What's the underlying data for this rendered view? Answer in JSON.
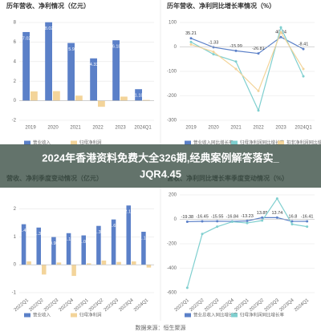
{
  "banner": [
    "2024年香港资料免费大全326期,经典案例解答落实_",
    "JQR4.45"
  ],
  "source": "数据来源：恒生聚源",
  "chart_data": [
    {
      "type": "bar",
      "title": "历年营收、净利情况（亿元）",
      "categories": [
        "2019",
        "2020",
        "2021",
        "2022",
        "2023",
        "2024Q1"
      ],
      "series": [
        {
          "name": "营业收入",
          "color": "#5b80c8",
          "values": [
            7.02,
            8.02,
            5.9,
            4.33,
            6.18,
            1.18
          ],
          "data_labels": true
        },
        {
          "name": "归母净利润",
          "color": "#f3d49a",
          "values": [
            0.95,
            0.98,
            0.52,
            -0.62,
            0.42,
            0.08
          ]
        }
      ],
      "ylim": [
        -2,
        8
      ],
      "yticks": [
        -2,
        0,
        2,
        4,
        6,
        8
      ],
      "grid": true
    },
    {
      "type": "line",
      "title": "历年营收、净利同比增长率情况（%）",
      "categories": [
        "2019",
        "2020",
        "2021",
        "2022",
        "2023",
        "2024Q1"
      ],
      "series": [
        {
          "name": "营业收入同比增长率",
          "color": "#5b80c8",
          "values": [
            35.21,
            -1.33,
            -15.99,
            -26.81,
            40.34,
            -8.41
          ],
          "data_labels": true
        },
        {
          "name": "归母净利润同比增长率",
          "color": "#7fcfcf",
          "values": [
            20,
            -30,
            -60,
            -260,
            80,
            -120
          ]
        },
        {
          "name": "扣非净利润同比增长率",
          "color": "#f3d49a",
          "values": [
            10,
            -20,
            -90,
            -180,
            60,
            -90
          ]
        }
      ],
      "ylim": [
        -300,
        100
      ],
      "yticks": [
        -300,
        -200,
        -100,
        0,
        100
      ],
      "grid": true
    },
    {
      "type": "bar",
      "title": "营收、净利季度变动情况（亿元）",
      "categories": [
        "2022Q1",
        "2022Q2",
        "2022Q3",
        "2022Q4",
        "2023Q1",
        "2023Q2",
        "2023Q3",
        "2023Q4",
        "2024Q1"
      ],
      "series": [
        {
          "name": "营业收入",
          "color": "#5b80c8",
          "values": [
            1.45,
            1.33,
            0.99,
            1.13,
            1.05,
            1.39,
            1.62,
            2.12,
            1.18
          ],
          "data_labels": true
        },
        {
          "name": "归母净利润",
          "color": "#f3d49a",
          "values": [
            0.12,
            -0.35,
            0.08,
            -0.4,
            0.05,
            0.15,
            0.1,
            0.12,
            -0.1
          ]
        }
      ],
      "ylim": [
        -1,
        2.5
      ],
      "yticks": [
        -1,
        0,
        1,
        2
      ],
      "grid": true
    },
    {
      "type": "line",
      "title": "营收、净利同比增长率季度变动情况（%）",
      "categories": [
        "2022Q1",
        "2022Q2",
        "2022Q3",
        "2022Q4",
        "2023Q1",
        "2023Q2",
        "2023Q3",
        "2023Q4",
        "2024Q1"
      ],
      "series": [
        {
          "name": "营业总收入同比增长率",
          "color": "#5b80c8",
          "values": [
            -19.38,
            -16.45,
            -15.55,
            -16.84,
            -13.23,
            13.85,
            13.74,
            -16.8,
            -16.41
          ],
          "data_labels": true
        },
        {
          "name": "归母净利润同比增长率",
          "color": "#7fcfcf",
          "values": [
            -560,
            -120,
            -60,
            -20,
            -30,
            -10,
            170,
            -40,
            -60
          ]
        }
      ],
      "ylim": [
        -600,
        200
      ],
      "yticks": [
        -600,
        -400,
        -200,
        0,
        200
      ],
      "grid": true
    }
  ]
}
